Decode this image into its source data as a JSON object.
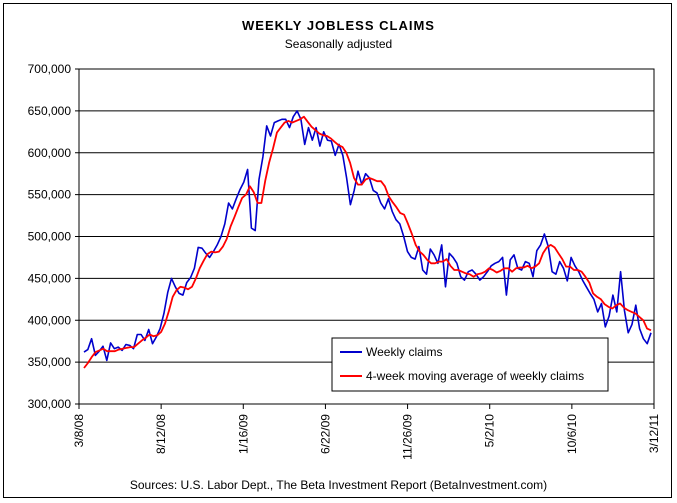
{
  "chart_data": {
    "type": "line",
    "title": "WEEKLY JOBLESS CLAIMS",
    "subtitle": "Seasonally adjusted",
    "source": "Sources: U.S. Labor Dept., The Beta Investment Report (BetaInvestment.com)",
    "xlabel": "",
    "ylabel": "",
    "ylim": [
      300000,
      700000
    ],
    "y_ticks": [
      300000,
      350000,
      400000,
      450000,
      500000,
      550000,
      600000,
      650000,
      700000
    ],
    "y_tick_labels": [
      "300,000",
      "350,000",
      "400,000",
      "450,000",
      "500,000",
      "550,000",
      "600,000",
      "650,000",
      "700,000"
    ],
    "x_tick_labels": [
      "3/8/08",
      "8/12/08",
      "1/16/09",
      "6/22/09",
      "11/26/09",
      "5/2/10",
      "10/6/10",
      "3/12/11"
    ],
    "grid": true,
    "legend_position": "bottom-right",
    "series": [
      {
        "name": "Weekly claims",
        "color": "#0000cc",
        "values": [
          362000,
          365000,
          378000,
          358000,
          363000,
          369000,
          352000,
          373000,
          366000,
          368000,
          364000,
          371000,
          370000,
          366000,
          383000,
          383000,
          376000,
          389000,
          372000,
          380000,
          390000,
          408000,
          433000,
          450000,
          440000,
          432000,
          430000,
          445000,
          451000,
          462000,
          487000,
          486000,
          480000,
          475000,
          482000,
          490000,
          500000,
          515000,
          540000,
          533000,
          545000,
          556000,
          565000,
          580000,
          510000,
          507000,
          568000,
          595000,
          632000,
          620000,
          636000,
          638000,
          640000,
          640000,
          630000,
          643000,
          650000,
          640000,
          610000,
          630000,
          615000,
          630000,
          608000,
          625000,
          615000,
          614000,
          597000,
          610000,
          597000,
          570000,
          538000,
          555000,
          578000,
          562000,
          575000,
          570000,
          555000,
          552000,
          540000,
          533000,
          545000,
          530000,
          520000,
          515000,
          500000,
          482000,
          475000,
          473000,
          488000,
          460000,
          455000,
          485000,
          478000,
          468000,
          490000,
          440000,
          480000,
          475000,
          468000,
          452000,
          448000,
          458000,
          460000,
          455000,
          448000,
          452000,
          458000,
          465000,
          468000,
          470000,
          475000,
          430000,
          472000,
          478000,
          462000,
          460000,
          470000,
          468000,
          452000,
          483000,
          490000,
          503000,
          488000,
          458000,
          455000,
          470000,
          462000,
          447000,
          475000,
          465000,
          458000,
          448000,
          440000,
          432000,
          425000,
          410000,
          420000,
          392000,
          405000,
          430000,
          410000,
          458000,
          412000,
          385000,
          395000,
          418000,
          390000,
          378000,
          372000,
          385000
        ]
      },
      {
        "name": "4-week moving average of weekly claims",
        "color": "#ff0000",
        "values": [
          343000,
          349000,
          356000,
          362000,
          364000,
          366000,
          363000,
          363000,
          363000,
          365000,
          366000,
          367000,
          368000,
          368000,
          372000,
          376000,
          379000,
          383000,
          381000,
          382000,
          386000,
          396000,
          411000,
          428000,
          436000,
          440000,
          439000,
          437000,
          440000,
          450000,
          462000,
          471000,
          479000,
          482000,
          481000,
          482000,
          488000,
          497000,
          512000,
          523000,
          535000,
          546000,
          550000,
          560000,
          553000,
          540000,
          540000,
          567000,
          588000,
          605000,
          624000,
          630000,
          636000,
          638000,
          636000,
          638000,
          640000,
          643000,
          637000,
          631000,
          627000,
          623000,
          621000,
          620000,
          617000,
          613000,
          609000,
          607000,
          600000,
          588000,
          570000,
          562000,
          562000,
          568000,
          570000,
          568000,
          566000,
          566000,
          560000,
          548000,
          541000,
          535000,
          528000,
          526000,
          515000,
          503000,
          490000,
          482000,
          478000,
          472000,
          468000,
          468000,
          470000,
          470000,
          473000,
          465000,
          460000,
          460000,
          458000,
          456000,
          455000,
          452000,
          455000,
          456000,
          458000,
          462000,
          460000,
          457000,
          459000,
          462000,
          462000,
          458000,
          462000,
          463000,
          463000,
          465000,
          462000,
          464000,
          468000,
          480000,
          487000,
          490000,
          487000,
          480000,
          473000,
          464000,
          464000,
          460000,
          460000,
          458000,
          452000,
          445000,
          432000,
          428000,
          425000,
          419000,
          416000,
          414000,
          418000,
          420000,
          415000,
          412000,
          410000,
          408000,
          404000,
          400000,
          390000,
          388000
        ]
      }
    ]
  }
}
